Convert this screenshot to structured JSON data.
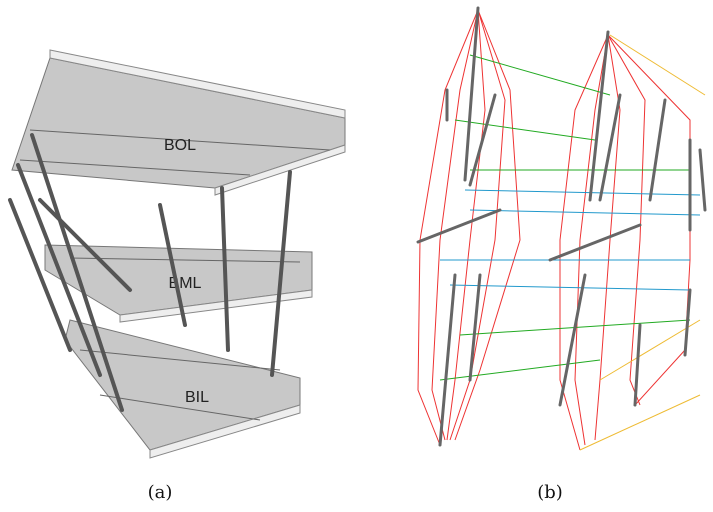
{
  "panels": [
    {
      "caption": "(a)",
      "labels": [
        "BOL",
        "BML",
        "BIL"
      ]
    },
    {
      "caption": "(b)"
    }
  ]
}
